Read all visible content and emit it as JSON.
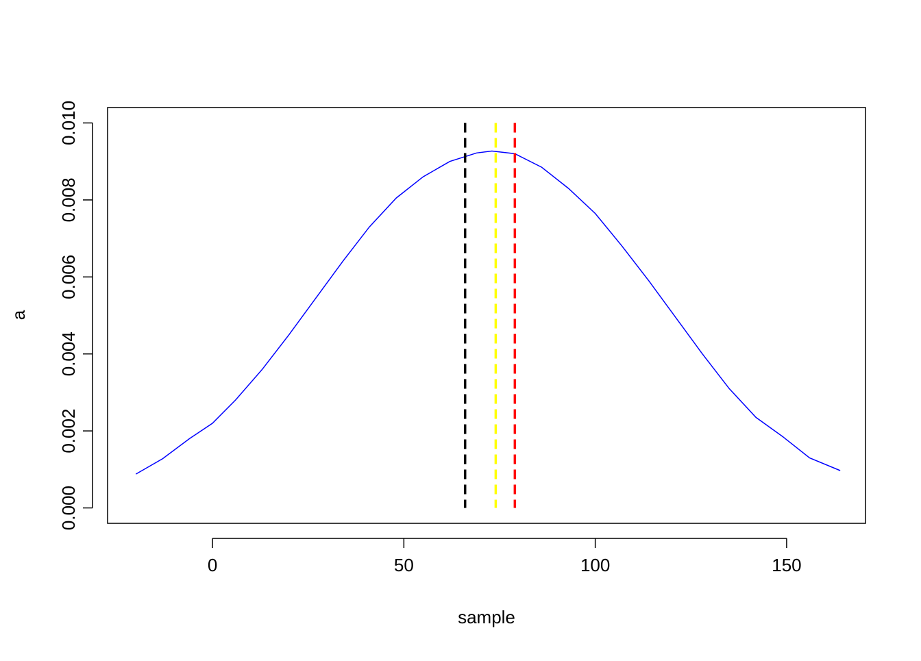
{
  "chart_data": {
    "type": "line",
    "xlabel": "sample",
    "ylabel": "a",
    "xlim": [
      -27.4,
      170.6
    ],
    "ylim": [
      -0.0004,
      0.0104
    ],
    "x_ticks": [
      0,
      50,
      100,
      150
    ],
    "y_ticks": [
      0.0,
      0.002,
      0.004,
      0.006,
      0.008,
      0.01
    ],
    "x_tick_labels": [
      "0",
      "50",
      "100",
      "150"
    ],
    "y_tick_labels": [
      "0.000",
      "0.002",
      "0.004",
      "0.006",
      "0.008",
      "0.010"
    ],
    "grid": false,
    "box": true,
    "series": [
      {
        "color": "#0000ff",
        "x": [
          -20,
          -13,
          -6,
          0,
          6,
          13,
          20,
          27,
          34,
          41,
          48,
          55,
          62,
          69,
          73,
          79,
          86,
          93,
          100,
          107,
          114,
          121,
          128,
          135,
          142,
          149,
          156,
          164
        ],
        "y": [
          0.00088,
          0.00128,
          0.0018,
          0.0022,
          0.0028,
          0.0036,
          0.0045,
          0.00545,
          0.0064,
          0.0073,
          0.00805,
          0.0086,
          0.009,
          0.00922,
          0.00927,
          0.0092,
          0.00885,
          0.0083,
          0.00765,
          0.0068,
          0.0059,
          0.00495,
          0.004,
          0.0031,
          0.00235,
          0.00185,
          0.0013,
          0.00097
        ]
      }
    ],
    "vlines": [
      {
        "x": 66,
        "y_range": [
          0,
          0.01
        ],
        "color": "#000000",
        "style": "dashed"
      },
      {
        "x": 74,
        "y_range": [
          0,
          0.01
        ],
        "color": "#ffff00",
        "style": "dashed"
      },
      {
        "x": 79,
        "y_range": [
          0,
          0.01
        ],
        "color": "#ff0000",
        "style": "dashed"
      }
    ]
  }
}
